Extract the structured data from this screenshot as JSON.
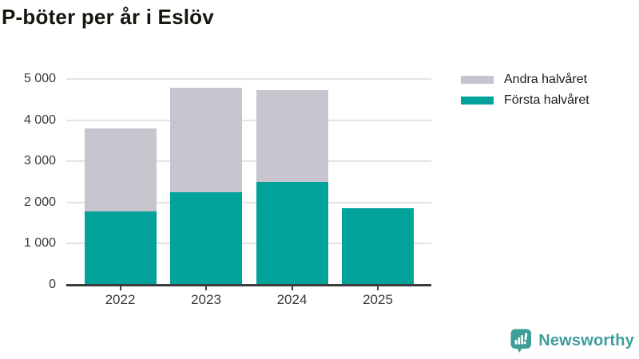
{
  "title": "P-böter per år i Eslöv",
  "colors": {
    "first_half": "#00a299",
    "second_half": "#c7c4ce",
    "grid": "#e3e3e3",
    "axis": "#3c3c3c",
    "tick_text": "#3a3a3a",
    "brand_teal": "#3f9e99"
  },
  "legend": {
    "items": [
      {
        "label": "Andra halvåret",
        "color": "#c7c4ce"
      },
      {
        "label": "Första halvåret",
        "color": "#00a299"
      }
    ]
  },
  "footer": {
    "brand": "Newsworthy"
  },
  "chart_data": {
    "type": "bar",
    "stacked": true,
    "title": "P-böter per år i Eslöv",
    "categories": [
      "2022",
      "2023",
      "2024",
      "2025"
    ],
    "series": [
      {
        "name": "Första halvåret",
        "color": "#00a299",
        "values": [
          1790,
          2240,
          2500,
          1860
        ]
      },
      {
        "name": "Andra halvåret",
        "color": "#c7c4ce",
        "values": [
          2000,
          2540,
          2230,
          0
        ]
      }
    ],
    "totals": [
      3790,
      4780,
      4730,
      1860
    ],
    "xlabel": "",
    "ylabel": "",
    "ylim": [
      0,
      5000
    ],
    "ytick_interval": 1000,
    "ytick_labels": [
      "0",
      "1 000",
      "2 000",
      "3 000",
      "4 000",
      "5 000"
    ],
    "grid": true,
    "legend_position": "right"
  }
}
